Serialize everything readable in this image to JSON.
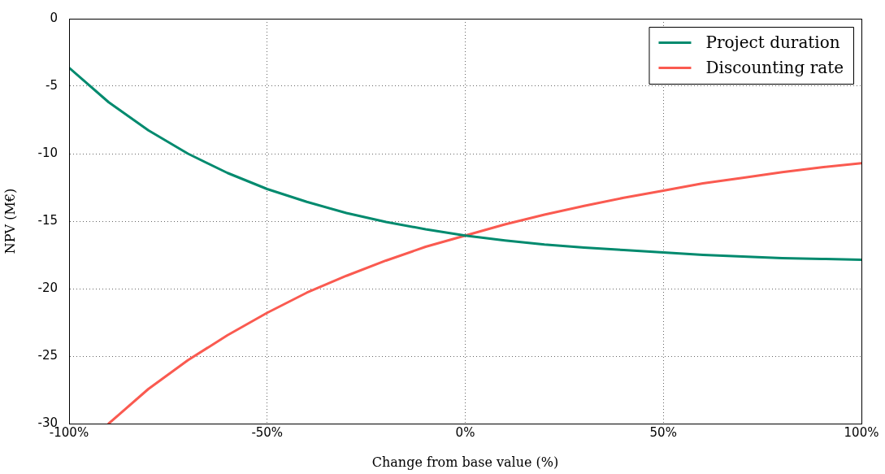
{
  "chart_data": {
    "type": "line",
    "xlabel": "Change from base value (%)",
    "ylabel": "NPV (M€)",
    "xlim": [
      -100,
      100
    ],
    "xticks": [
      {
        "value": -100,
        "label": "-100%"
      },
      {
        "value": -50,
        "label": "-50%"
      },
      {
        "value": 0,
        "label": "0%"
      },
      {
        "value": 50,
        "label": "50%"
      },
      {
        "value": 100,
        "label": "100%"
      }
    ],
    "ylim": [
      -30,
      0
    ],
    "yticks": [
      -30,
      -25,
      -20,
      -15,
      -10,
      -5,
      0
    ],
    "grid": true,
    "legend": "top right",
    "marker": "none",
    "line_style": "solid",
    "series": [
      {
        "name": "Project duration",
        "color": "#008a6e",
        "x": [
          -100,
          -90,
          -80,
          -70,
          -60,
          -50,
          -40,
          -30,
          -20,
          -10,
          0,
          10,
          20,
          30,
          40,
          50,
          60,
          70,
          80,
          90,
          100
        ],
        "values": [
          -3.63,
          -6.19,
          -8.27,
          -10.0,
          -11.43,
          -12.62,
          -13.57,
          -14.4,
          -15.06,
          -15.6,
          -16.07,
          -16.43,
          -16.73,
          -16.96,
          -17.14,
          -17.32,
          -17.5,
          -17.62,
          -17.74,
          -17.8,
          -17.86
        ]
      },
      {
        "name": "Discounting rate",
        "color": "#fa5a50",
        "x": [
          -90,
          -80,
          -70,
          -60,
          -50,
          -40,
          -30,
          -20,
          -10,
          0,
          10,
          20,
          30,
          40,
          50,
          60,
          70,
          80,
          90,
          100
        ],
        "values": [
          -30,
          -27.44,
          -25.3,
          -23.45,
          -21.79,
          -20.3,
          -19.05,
          -17.92,
          -16.9,
          -16.07,
          -15.24,
          -14.52,
          -13.87,
          -13.27,
          -12.74,
          -12.2,
          -11.79,
          -11.37,
          -11.01,
          -10.71
        ]
      }
    ]
  }
}
